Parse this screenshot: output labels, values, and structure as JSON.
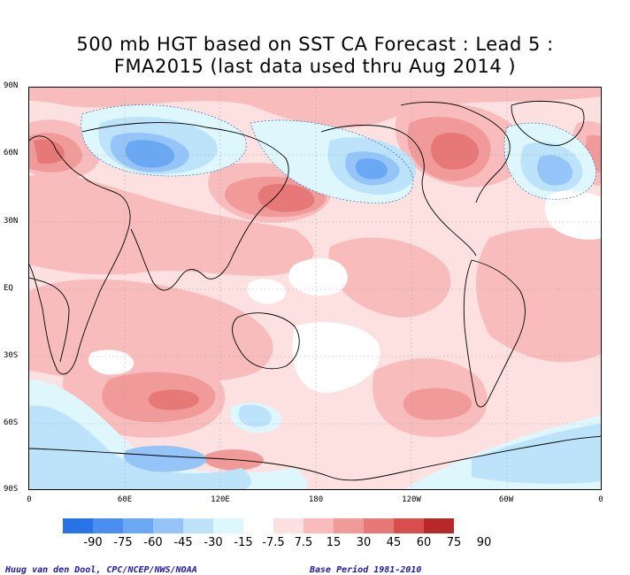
{
  "title_line1": "500 mb HGT based on SST CA Forecast : Lead 5 :",
  "title_line2": "FMA2015 (last data used thru Aug 2014 )",
  "lat_labels": [
    "90N",
    "60N",
    "30N",
    "EQ",
    "30S",
    "60S",
    "90S"
  ],
  "lon_labels": [
    "0",
    "60E",
    "120E",
    "180",
    "120W",
    "60W",
    "0"
  ],
  "legend": {
    "neg_colors": [
      "#2a72e8",
      "#4a8ef0",
      "#6aa8f4",
      "#94c4f8",
      "#bce3fa",
      "#ddf7fc"
    ],
    "pos_colors": [
      "#fde0e0",
      "#f8bcbc",
      "#f09a9a",
      "#e77878",
      "#d84e4e",
      "#b82828"
    ],
    "labels": [
      "-90",
      "-75",
      "-60",
      "-45",
      "-30",
      "-15",
      "-7.5",
      "7.5",
      "15",
      "30",
      "45",
      "60",
      "75",
      "90"
    ]
  },
  "credit_left": "Huug van den Dool, CPC/NCEP/NWS/NOAA",
  "credit_right": "Base Period 1981-2010",
  "map_colors": {
    "pink_light": "#fde0e0",
    "pink": "#f8bcbc",
    "red_mid": "#f09a9a",
    "red": "#e77878",
    "blue_faint": "#ddf7fc",
    "blue_light": "#bce3fa",
    "blue_mid": "#94c4f8",
    "blue": "#6aa8f4"
  }
}
